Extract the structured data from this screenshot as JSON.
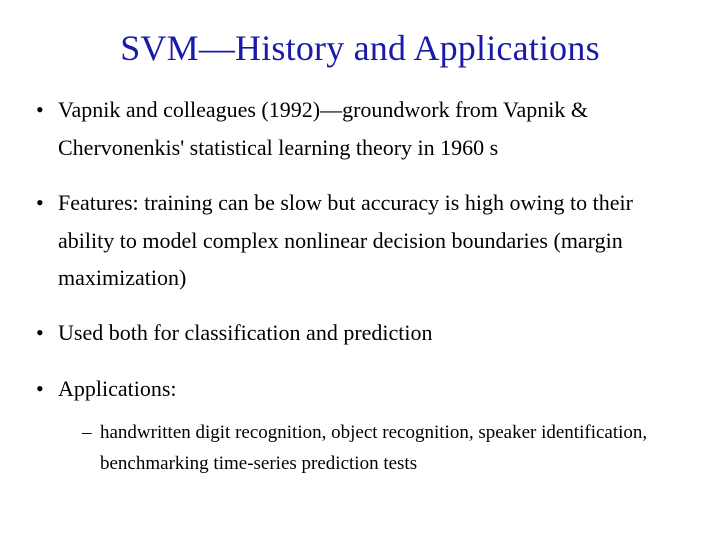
{
  "title_color": "#1a1aa8",
  "text_color": "#000000",
  "background_color": "#ffffff",
  "title": "SVM—History and Applications",
  "title_fontsize": 36,
  "body_fontsize": 22,
  "sub_fontsize": 19,
  "bullets": [
    {
      "text": "Vapnik and colleagues (1992)—groundwork from Vapnik & Chervonenkis' statistical learning theory in 1960 s"
    },
    {
      "text": "Features: training can be slow but accuracy is high owing to their ability to model complex nonlinear decision boundaries (margin maximization)"
    },
    {
      "text": "Used both for classification and prediction"
    },
    {
      "text": "Applications:",
      "children": [
        {
          "text": "handwritten digit recognition, object recognition, speaker identification, benchmarking time-series prediction tests"
        }
      ]
    }
  ]
}
